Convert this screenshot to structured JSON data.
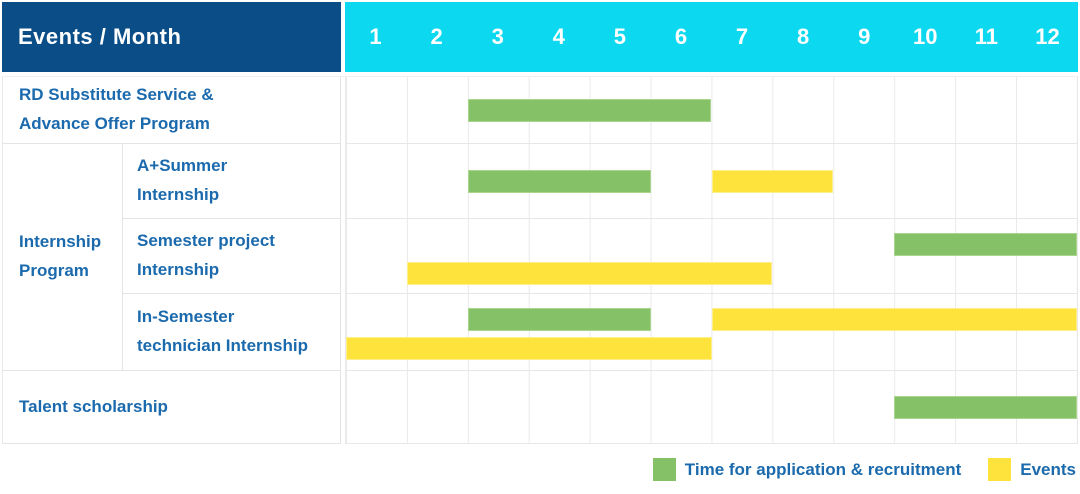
{
  "header": {
    "title": "Events / Month",
    "months": [
      "1",
      "2",
      "3",
      "4",
      "5",
      "6",
      "7",
      "8",
      "9",
      "10",
      "11",
      "12"
    ]
  },
  "colors": {
    "header_bg": "#0B4D87",
    "months_bg": "#0CD8EF",
    "application_green": "#85C167",
    "events_yellow": "#FFE33D",
    "label_text_blue": "#1B6AAD"
  },
  "legend": {
    "items": [
      {
        "series": "application",
        "label": "Time for application & recruitment"
      },
      {
        "series": "events",
        "label": "Events"
      }
    ]
  },
  "chart_data": {
    "type": "gantt",
    "title": "Events / Month",
    "x_categories": [
      "1",
      "2",
      "3",
      "4",
      "5",
      "6",
      "7",
      "8",
      "9",
      "10",
      "11",
      "12"
    ],
    "x_range": [
      1,
      12
    ],
    "grid": true,
    "legend_position": "bottom-right",
    "series_meta": {
      "application": {
        "label": "Time for application & recruitment",
        "color": "#85C167"
      },
      "events": {
        "label": "Events",
        "color": "#FFE33D"
      }
    },
    "group_label": "Internship Program",
    "group_label_lines": [
      "Internship",
      "Program"
    ],
    "rows": [
      {
        "label": "RD Substitute Service & Advance Offer Program",
        "label_lines": [
          "RD Substitute Service &",
          "Advance Offer Program"
        ],
        "group": null,
        "bars": [
          {
            "series": "application",
            "start_month": 3,
            "end_month": 6,
            "lane": "center"
          }
        ]
      },
      {
        "label": "A+Summer Internship",
        "label_lines": [
          "A+Summer",
          "Internship"
        ],
        "group": "Internship Program",
        "bars": [
          {
            "series": "application",
            "start_month": 3,
            "end_month": 5,
            "lane": "center"
          },
          {
            "series": "events",
            "start_month": 7,
            "end_month": 8,
            "lane": "center"
          }
        ]
      },
      {
        "label": "Semester project Internship",
        "label_lines": [
          "Semester project",
          "Internship"
        ],
        "group": "Internship Program",
        "bars": [
          {
            "series": "application",
            "start_month": 10,
            "end_month": 12,
            "lane": "top"
          },
          {
            "series": "events",
            "start_month": 2,
            "end_month": 7,
            "lane": "bottom"
          }
        ]
      },
      {
        "label": "In-Semester technician Internship",
        "label_lines": [
          "In-Semester",
          "technician Internship"
        ],
        "group": "Internship Program",
        "bars": [
          {
            "series": "application",
            "start_month": 3,
            "end_month": 5,
            "lane": "top"
          },
          {
            "series": "events",
            "start_month": 7,
            "end_month": 12,
            "lane": "top"
          },
          {
            "series": "events",
            "start_month": 1,
            "end_month": 6,
            "lane": "bottom"
          }
        ]
      },
      {
        "label": "Talent scholarship",
        "label_lines": [
          "Talent scholarship"
        ],
        "group": null,
        "bars": [
          {
            "series": "application",
            "start_month": 10,
            "end_month": 12,
            "lane": "center"
          }
        ]
      }
    ]
  }
}
